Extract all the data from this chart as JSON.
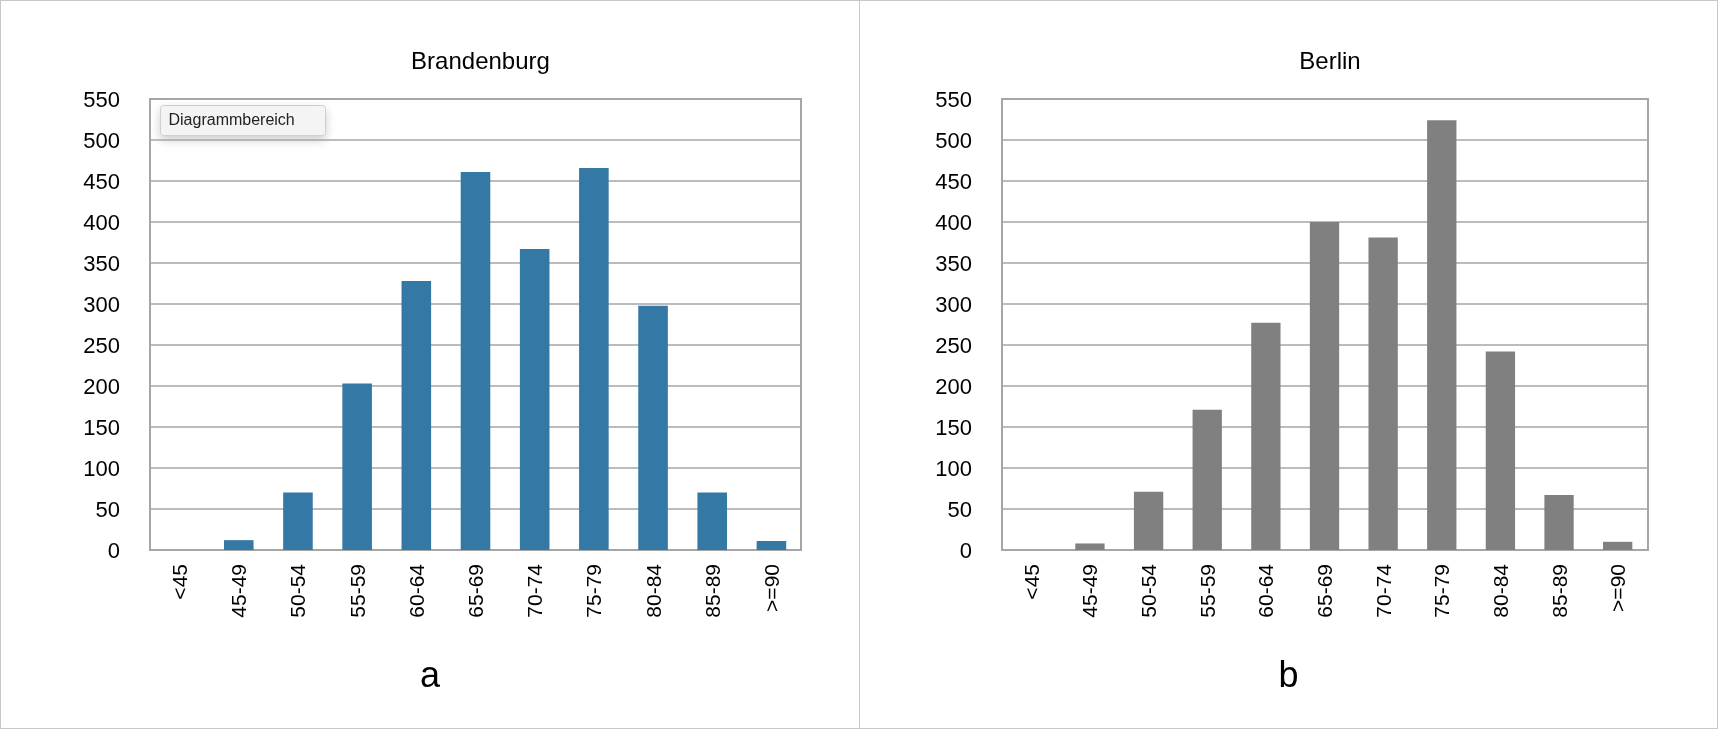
{
  "chart_data": [
    {
      "type": "bar",
      "title": "Brandenburg",
      "categories": [
        "<45",
        "45-49",
        "50-54",
        "55-59",
        "60-64",
        "65-69",
        "70-74",
        "75-79",
        "80-84",
        "85-89",
        ">=90"
      ],
      "values": [
        0,
        12,
        70,
        203,
        328,
        461,
        367,
        466,
        298,
        70,
        11
      ],
      "color": "#3478a5",
      "ylim": [
        0,
        550
      ],
      "yticks": [
        0,
        50,
        100,
        150,
        200,
        250,
        300,
        350,
        400,
        450,
        500,
        550
      ],
      "grid": "y",
      "annotations": [
        "Diagrammbereich",
        "a"
      ]
    },
    {
      "type": "bar",
      "title": "Berlin",
      "categories": [
        "<45",
        "45-49",
        "50-54",
        "55-59",
        "60-64",
        "65-69",
        "70-74",
        "75-79",
        "80-84",
        "85-89",
        ">=90"
      ],
      "values": [
        0,
        8,
        71,
        171,
        277,
        400,
        381,
        524,
        242,
        67,
        10
      ],
      "color": "#808080",
      "ylim": [
        0,
        550
      ],
      "yticks": [
        0,
        50,
        100,
        150,
        200,
        250,
        300,
        350,
        400,
        450,
        500,
        550
      ],
      "grid": "y",
      "annotations": [
        "b"
      ]
    }
  ]
}
